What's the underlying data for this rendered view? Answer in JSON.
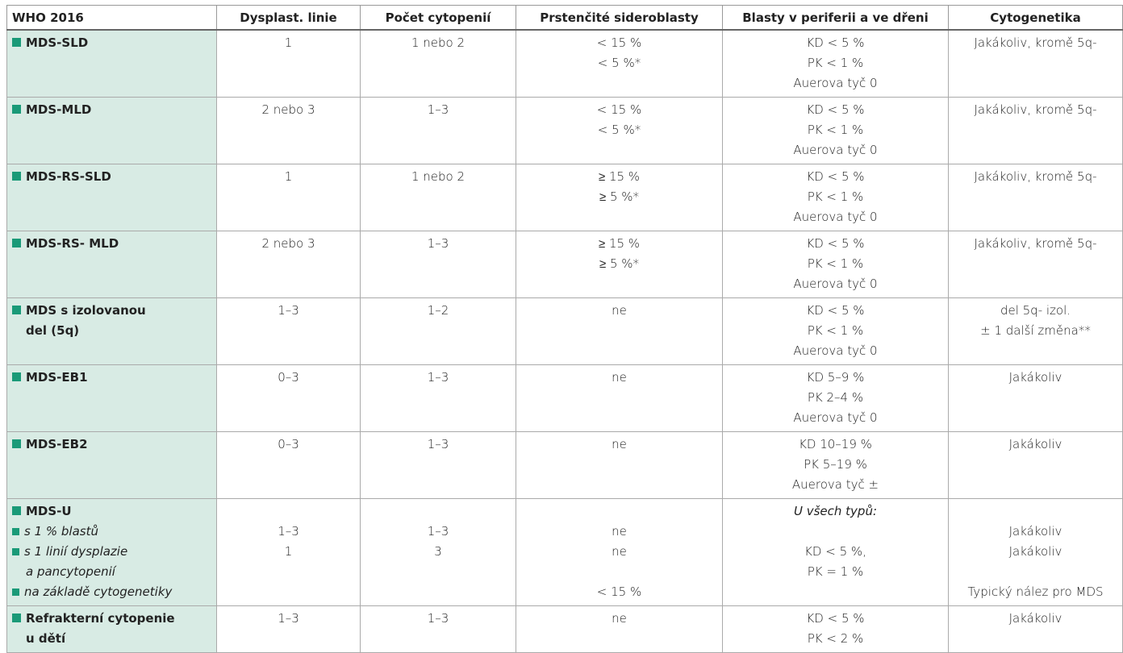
{
  "table": {
    "header": [
      "WHO 2016",
      "Dysplast. linie",
      "Počet cytopenií",
      "Prstenčité sideroblasty",
      "Blasty v periferii a ve dřeni",
      "Cytogenetika"
    ],
    "rows": [
      {
        "label": [
          "MDS-SLD"
        ],
        "cells": [
          [
            "1"
          ],
          [
            "1 nebo 2"
          ],
          [
            "< 15 %",
            "< 5 %*"
          ],
          [
            "KD < 5 %",
            "PK < 1 %",
            "Auerova tyč 0"
          ],
          [
            "Jakákoliv, kromě 5q-"
          ]
        ]
      },
      {
        "label": [
          "MDS-MLD"
        ],
        "cells": [
          [
            "2 nebo 3"
          ],
          [
            "1–3"
          ],
          [
            "< 15 %",
            "< 5 %*"
          ],
          [
            "KD < 5 %",
            "PK < 1 %",
            "Auerova tyč 0"
          ],
          [
            "Jakákoliv, kromě 5q-"
          ]
        ]
      },
      {
        "label": [
          "MDS-RS-SLD"
        ],
        "cells": [
          [
            "1"
          ],
          [
            "1 nebo 2"
          ],
          [
            "≥ 15 %",
            "≥ 5 %*"
          ],
          [
            "KD < 5 %",
            "PK < 1 %",
            "Auerova tyč 0"
          ],
          [
            "Jakákoliv, kromě 5q-"
          ]
        ]
      },
      {
        "label": [
          "MDS-RS- MLD"
        ],
        "cells": [
          [
            "2 nebo 3"
          ],
          [
            "1–3"
          ],
          [
            "≥ 15 %",
            "≥ 5 %*"
          ],
          [
            "KD < 5 %",
            "PK < 1 %",
            "Auerova tyč 0"
          ],
          [
            "Jakákoliv, kromě 5q-"
          ]
        ]
      },
      {
        "label": [
          "MDS s izolovanou",
          "del (5q)"
        ],
        "cells": [
          [
            "1–3"
          ],
          [
            "1–2"
          ],
          [
            "ne"
          ],
          [
            "KD < 5 %",
            "PK < 1 %",
            "Auerova tyč 0"
          ],
          [
            "del 5q- izol.",
            "± 1 další změna**"
          ]
        ]
      },
      {
        "label": [
          "MDS-EB1"
        ],
        "cells": [
          [
            "0–3"
          ],
          [
            "1–3"
          ],
          [
            "ne"
          ],
          [
            "KD 5–9 %",
            "PK 2–4 %",
            "Auerova tyč 0"
          ],
          [
            "Jakákoliv"
          ]
        ]
      },
      {
        "label": [
          "MDS-EB2"
        ],
        "cells": [
          [
            "0–3"
          ],
          [
            "1–3"
          ],
          [
            "ne"
          ],
          [
            "KD 10–19 %",
            "PK 5–19 %",
            "Auerova tyč ±"
          ],
          [
            "Jakákoliv"
          ]
        ]
      },
      {
        "label": [
          "MDS-U"
        ],
        "sub_items": [
          [
            "s 1 % blastů"
          ],
          [
            "s 1 linií dysplazie",
            "a pancytopenií"
          ],
          [
            "na základě cytogenetiky"
          ]
        ],
        "cells": [
          [
            null,
            "1–3",
            "1",
            null,
            null
          ],
          [
            null,
            "1–3",
            "3",
            null,
            null
          ],
          [
            null,
            "ne",
            "ne",
            null,
            "< 15 %"
          ],
          [
            "U všech typů:",
            null,
            "KD < 5 %,",
            "PK = 1 %",
            null
          ],
          [
            null,
            "Jakákoliv",
            "Jakákoliv",
            null,
            "Typický nález pro MDS"
          ]
        ]
      },
      {
        "label": [
          "Refrakterní cytopenie",
          "u dětí"
        ],
        "cells": [
          [
            "1–3"
          ],
          [
            "1–3"
          ],
          [
            "ne"
          ],
          [
            "KD < 5 %",
            "PK < 2 %"
          ],
          [
            "Jakákoliv"
          ]
        ]
      }
    ]
  }
}
